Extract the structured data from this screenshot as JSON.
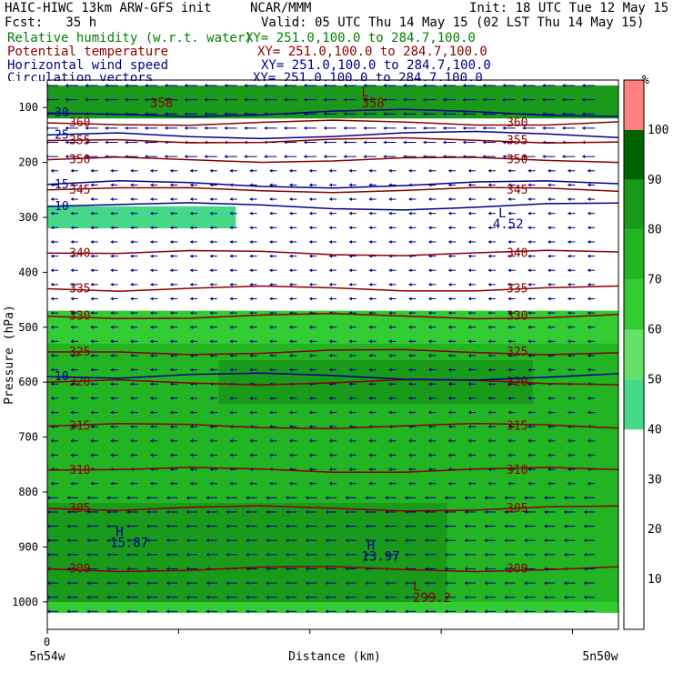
{
  "header": {
    "title_left": "HAIC-HIWC 13km ARW-GFS init",
    "center": "NCAR/MMM",
    "init": "Init: 18 UTC Tue 12 May 15",
    "fcst": "Fcst:   35 h",
    "valid": "Valid: 05 UTC Thu 14 May 15 (02 LST Thu 14 May 15)",
    "fields": [
      {
        "name": "Relative humidity (w.r.t. water)",
        "xy": "XY= 251.0,100.0 to 284.7,100.0",
        "color": "#008000"
      },
      {
        "name": "Potential temperature",
        "xy": "XY= 251.0,100.0 to 284.7,100.0",
        "color": "#8b0000"
      },
      {
        "name": "Horizontal wind speed",
        "xy": "XY= 251.0,100.0 to 284.7,100.0",
        "color": "#00008b"
      },
      {
        "name": "Circulation vectors",
        "xy": "XY= 251.0,100.0 to 284.7,100.0",
        "color": "#00008b"
      }
    ]
  },
  "chart_data": {
    "type": "heatmap",
    "ylabel": "Pressure (hPa)",
    "xlabel": "Distance (km)",
    "y_ticks": [
      100,
      200,
      300,
      400,
      500,
      600,
      700,
      800,
      900,
      1000
    ],
    "y_range_hPa": [
      50,
      1050
    ],
    "x_tick_labels": {
      "origin": "0",
      "left": "5n54w",
      "right": "5n50w"
    },
    "x_range_fraction": [
      0,
      1
    ],
    "rh_colorbar": {
      "unit": "%",
      "levels": [
        10,
        20,
        30,
        40,
        50,
        60,
        70,
        80,
        90,
        100
      ],
      "colors": [
        "#ff8080",
        "#006400",
        "#1a9a1a",
        "#22b422",
        "#33cc33",
        "#66e066",
        "#44d888",
        "#ffffff",
        "#ffffff",
        "#ffffff",
        "#ffffff",
        "#ffffff"
      ]
    },
    "rh_bands": [
      {
        "p_top": 470,
        "p_bottom": 1020,
        "x0": 0,
        "x1": 1,
        "level": 70
      },
      {
        "p_top": 530,
        "p_bottom": 1000,
        "x0": 0,
        "x1": 1,
        "level": 80
      },
      {
        "p_top": 560,
        "p_bottom": 640,
        "x0": 0.3,
        "x1": 0.85,
        "level": 90
      },
      {
        "p_top": 820,
        "p_bottom": 1000,
        "x0": 0,
        "x1": 0.7,
        "level": 90
      },
      {
        "p_top": 60,
        "p_bottom": 120,
        "x0": 0,
        "x1": 1,
        "level": 90
      },
      {
        "p_top": 280,
        "p_bottom": 320,
        "x0": 0,
        "x1": 0.33,
        "level": 50
      }
    ],
    "theta_contours": [
      {
        "value": 300,
        "p": 940
      },
      {
        "value": 305,
        "p": 830
      },
      {
        "value": 310,
        "p": 760
      },
      {
        "value": 315,
        "p": 680
      },
      {
        "value": 320,
        "p": 600
      },
      {
        "value": 325,
        "p": 545
      },
      {
        "value": 330,
        "p": 480
      },
      {
        "value": 335,
        "p": 430
      },
      {
        "value": 340,
        "p": 365
      },
      {
        "value": 345,
        "p": 250
      },
      {
        "value": 350,
        "p": 195
      },
      {
        "value": 355,
        "p": 160
      },
      {
        "value": 360,
        "p": 128
      }
    ],
    "wind_contours": [
      {
        "value": 10,
        "p": 590
      },
      {
        "value": 10,
        "p": 280
      },
      {
        "value": 15,
        "p": 240
      },
      {
        "value": 25,
        "p": 150
      },
      {
        "value": 30,
        "p": 110
      }
    ],
    "annotations": [
      {
        "text": "H",
        "x": 0.12,
        "p": 880,
        "color": "#00008b"
      },
      {
        "text": "15.87",
        "x": 0.11,
        "p": 900,
        "color": "#00008b"
      },
      {
        "text": "H",
        "x": 0.56,
        "p": 905,
        "color": "#00008b"
      },
      {
        "text": "13.97",
        "x": 0.55,
        "p": 925,
        "color": "#00008b"
      },
      {
        "text": "L",
        "x": 0.79,
        "p": 300,
        "color": "#00008b"
      },
      {
        "text": "4.52",
        "x": 0.78,
        "p": 320,
        "color": "#00008b"
      },
      {
        "text": "L",
        "x": 0.64,
        "p": 980,
        "color": "#8b0000"
      },
      {
        "text": "299.2",
        "x": 0.64,
        "p": 1000,
        "color": "#8b0000"
      },
      {
        "text": "L",
        "x": 0.55,
        "p": 80,
        "color": "#8b0000"
      },
      {
        "text": "358",
        "x": 0.55,
        "p": 100,
        "color": "#8b0000"
      },
      {
        "text": "358",
        "x": 0.18,
        "p": 100,
        "color": "#8b0000"
      }
    ],
    "vectors": {
      "direction": "westward",
      "rows": 38,
      "cols": 28
    }
  }
}
